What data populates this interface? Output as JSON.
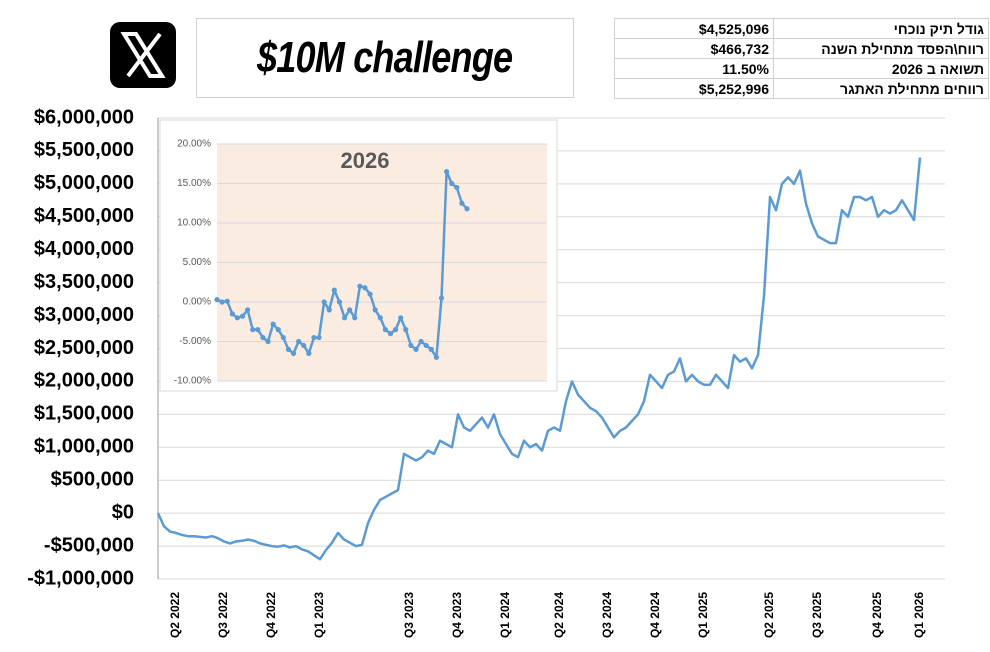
{
  "header": {
    "title": "$10M challenge"
  },
  "table": {
    "rows": [
      [
        "$4,525,096",
        "גודל תיק נוכחי"
      ],
      [
        "$466,732",
        "רווח\\הפסד מתחילת השנה"
      ],
      [
        "11.50%",
        "תשואה ב 2026"
      ],
      [
        "$5,252,996",
        "רווחים מתחילת האתגר"
      ]
    ]
  },
  "chart_data": [
    {
      "type": "line",
      "color": "#5b9bd5",
      "grid": true,
      "ylim": [
        -1000000,
        6000000
      ],
      "yticks": [
        {
          "value": -1000000,
          "label": "-$1,000,000"
        },
        {
          "value": -500000,
          "label": "-$500,000"
        },
        {
          "value": 0,
          "label": "$0"
        },
        {
          "value": 500000,
          "label": "$500,000"
        },
        {
          "value": 1000000,
          "label": "$1,000,000"
        },
        {
          "value": 1500000,
          "label": "$1,500,000"
        },
        {
          "value": 2000000,
          "label": "$2,000,000"
        },
        {
          "value": 2500000,
          "label": "$2,500,000"
        },
        {
          "value": 3000000,
          "label": "$3,000,000"
        },
        {
          "value": 3500000,
          "label": "$3,500,000"
        },
        {
          "value": 4000000,
          "label": "$4,000,000"
        },
        {
          "value": 4500000,
          "label": "$4,500,000"
        },
        {
          "value": 5000000,
          "label": "$5,000,000"
        },
        {
          "value": 5500000,
          "label": "$5,500,000"
        },
        {
          "value": 6000000,
          "label": "$6,000,000"
        }
      ],
      "categories": [
        null,
        null,
        null,
        "Q2 2022",
        null,
        null,
        null,
        null,
        null,
        null,
        null,
        "Q3 2022",
        null,
        null,
        null,
        null,
        null,
        null,
        null,
        "Q4 2022",
        null,
        null,
        null,
        null,
        null,
        null,
        null,
        "Q1 2023",
        null,
        null,
        null,
        null,
        null,
        null,
        null,
        null,
        null,
        null,
        null,
        null,
        null,
        null,
        "Q3 2023",
        null,
        null,
        null,
        null,
        null,
        null,
        null,
        "Q4 2023",
        null,
        null,
        null,
        null,
        null,
        null,
        null,
        "Q1 2024",
        null,
        null,
        null,
        null,
        null,
        null,
        null,
        null,
        "Q2 2024",
        null,
        null,
        null,
        null,
        null,
        null,
        null,
        "Q3 2024",
        null,
        null,
        null,
        null,
        null,
        null,
        null,
        "Q4 2024",
        null,
        null,
        null,
        null,
        null,
        null,
        null,
        "Q1 2025",
        null,
        null,
        null,
        null,
        null,
        null,
        null,
        null,
        null,
        null,
        "Q2 2025",
        null,
        null,
        null,
        null,
        null,
        null,
        null,
        "Q3 2025",
        null,
        null,
        null,
        null,
        null,
        null,
        null,
        null,
        null,
        "Q4 2025",
        null,
        null,
        null,
        null,
        null,
        null,
        "Q1 2026"
      ],
      "values": [
        0,
        -200000,
        -280000,
        -300000,
        -330000,
        -350000,
        -350000,
        -360000,
        -370000,
        -350000,
        -380000,
        -430000,
        -460000,
        -430000,
        -420000,
        -400000,
        -420000,
        -460000,
        -480000,
        -500000,
        -510000,
        -490000,
        -520000,
        -500000,
        -550000,
        -580000,
        -640000,
        -700000,
        -560000,
        -450000,
        -300000,
        -400000,
        -450000,
        -500000,
        -480000,
        -150000,
        50000,
        200000,
        250000,
        300000,
        350000,
        900000,
        850000,
        800000,
        850000,
        950000,
        900000,
        1100000,
        1050000,
        1000000,
        1500000,
        1300000,
        1250000,
        1350000,
        1450000,
        1300000,
        1500000,
        1200000,
        1050000,
        900000,
        850000,
        1100000,
        1000000,
        1050000,
        950000,
        1250000,
        1300000,
        1250000,
        1700000,
        2000000,
        1800000,
        1700000,
        1600000,
        1550000,
        1450000,
        1300000,
        1150000,
        1250000,
        1300000,
        1400000,
        1500000,
        1700000,
        2100000,
        2000000,
        1900000,
        2100000,
        2150000,
        2350000,
        2000000,
        2100000,
        2000000,
        1950000,
        1950000,
        2100000,
        2000000,
        1900000,
        2400000,
        2300000,
        2350000,
        2200000,
        2400000,
        3300000,
        4800000,
        4600000,
        5000000,
        5100000,
        5000000,
        5200000,
        4700000,
        4400000,
        4200000,
        4150000,
        4100000,
        4100000,
        4600000,
        4500000,
        4800000,
        4800000,
        4750000,
        4800000,
        4500000,
        4600000,
        4550000,
        4600000,
        4750000,
        4600000,
        4450000,
        5400000
      ]
    },
    {
      "type": "line",
      "title": "2026",
      "color": "#5b9bd5",
      "grid": true,
      "background": "#fbece2",
      "ylim": [
        -10,
        20
      ],
      "yticks": [
        {
          "value": -10,
          "label": "-10.00%"
        },
        {
          "value": -5,
          "label": "-5.00%"
        },
        {
          "value": 0,
          "label": "0.00%"
        },
        {
          "value": 5,
          "label": "5.00%"
        },
        {
          "value": 10,
          "label": "10.00%"
        },
        {
          "value": 15,
          "label": "15.00%"
        },
        {
          "value": 20,
          "label": "20.00%"
        }
      ],
      "values": [
        0.3,
        0,
        0.1,
        -1.5,
        -2,
        -1.8,
        -1,
        -3.5,
        -3.5,
        -4.5,
        -5,
        -2.8,
        -3.5,
        -4.5,
        -6,
        -6.5,
        -5,
        -5.5,
        -6.5,
        -4.5,
        -4.5,
        0,
        -1,
        1.5,
        0,
        -2,
        -1,
        -2,
        2,
        1.8,
        1,
        -1,
        -2,
        -3.5,
        -4,
        -3.5,
        -2,
        -3.5,
        -5.5,
        -6,
        -5,
        -5.5,
        -6,
        -7,
        0.5,
        16.5,
        15,
        14.5,
        12.5,
        11.8
      ]
    }
  ]
}
